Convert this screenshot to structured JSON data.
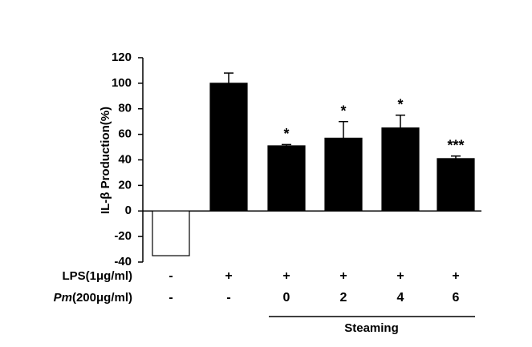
{
  "chart_data": {
    "type": "bar",
    "y_label": "IL-β Production(%)",
    "values": [
      -35,
      100,
      51,
      57,
      65,
      41
    ],
    "errors": [
      0,
      8,
      1,
      13,
      10,
      2
    ],
    "colors": [
      "#ffffff",
      "#000000",
      "#000000",
      "#000000",
      "#000000",
      "#000000"
    ],
    "annotations": [
      null,
      null,
      "*",
      "*",
      "*",
      "***"
    ],
    "ylim": [
      -40,
      120
    ],
    "yticks": [
      -40,
      -20,
      0,
      20,
      40,
      60,
      80,
      100,
      120
    ],
    "rows": [
      {
        "label": "LPS(1μg/ml)",
        "values": [
          "-",
          "+",
          "+",
          "+",
          "+",
          "+"
        ]
      },
      {
        "label_italic": "Pm",
        "label": "(200μg/ml)",
        "values": [
          "-",
          "-",
          "0",
          "2",
          "4",
          "6"
        ]
      }
    ],
    "group_label": "Steaming"
  }
}
